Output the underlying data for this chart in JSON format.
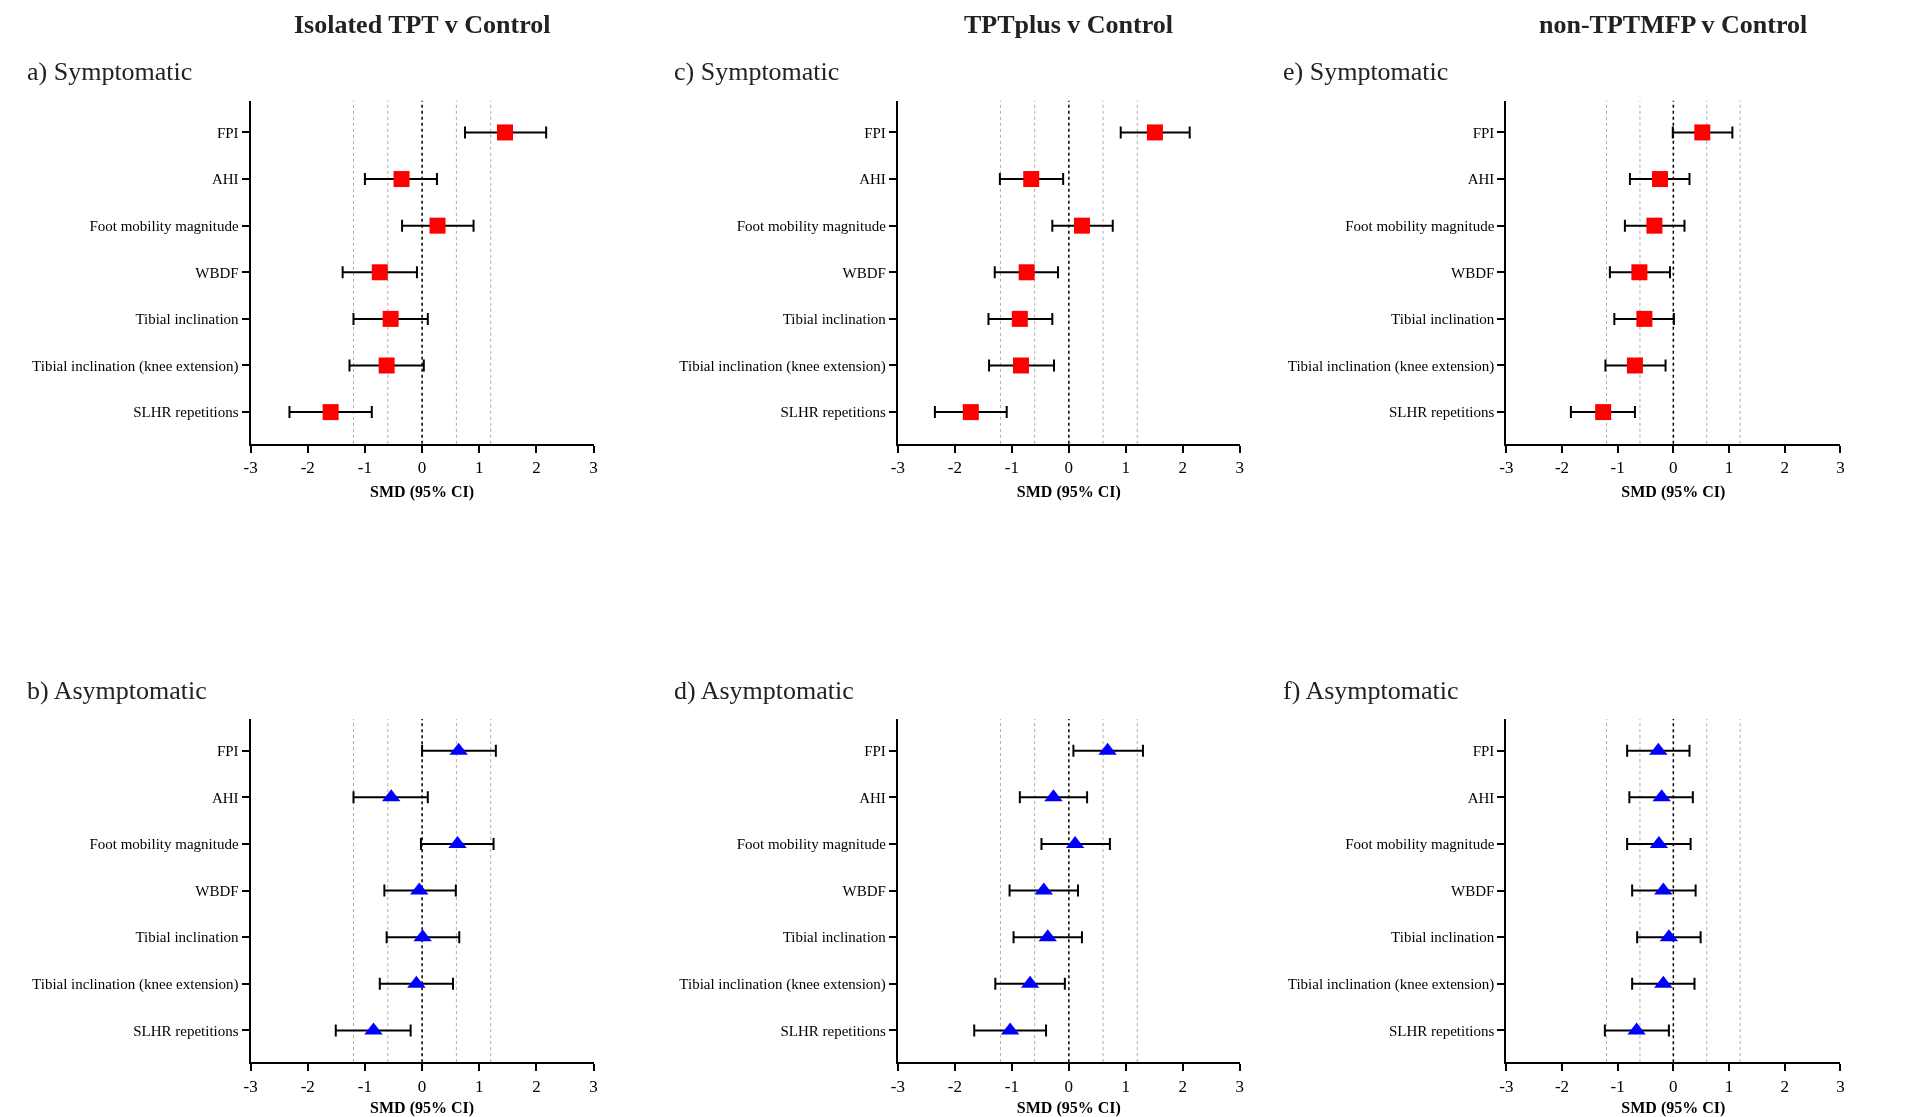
{
  "chart_data": [
    {
      "type": "scatter",
      "title": "a) Symptomatic",
      "annotations": [
        "Isolated TPT v Control"
      ],
      "xlabel": "SMD (95% CI)",
      "orientation": "horizontal",
      "marker": "square",
      "grid": false,
      "categories": [
        "FPI",
        "AHI",
        "Foot mobility magnitude",
        "WBDF",
        "Tibial inclination",
        "Tibial inclination (knee extension)",
        "SLHR repetitions"
      ],
      "series": [
        {
          "color": "#ff0000",
          "values": [
            1.45,
            -0.36,
            0.27,
            -0.74,
            -0.55,
            -0.62,
            -1.6
          ],
          "errors": [
            [
              0.75,
              2.17
            ],
            [
              -1.0,
              0.26
            ],
            [
              -0.35,
              0.9
            ],
            [
              -1.39,
              -0.09
            ],
            [
              -1.2,
              0.1
            ],
            [
              -1.27,
              0.03
            ],
            [
              -2.32,
              -0.88
            ]
          ]
        }
      ],
      "xlim": [
        -3,
        3
      ],
      "xticks": [
        -3,
        -2,
        -1,
        0,
        1,
        2,
        3
      ],
      "ref_lines": [
        {
          "axis": "x",
          "value": -1.2,
          "color": "#aaaaaa",
          "line_style": "dotted"
        },
        {
          "axis": "x",
          "value": -0.6,
          "color": "#aaaaaa",
          "line_style": "dotted"
        },
        {
          "axis": "x",
          "value": 0,
          "color": "#000000",
          "line_style": "dotted"
        },
        {
          "axis": "x",
          "value": 0.6,
          "color": "#aaaaaa",
          "line_style": "dotted"
        },
        {
          "axis": "x",
          "value": 1.2,
          "color": "#aaaaaa",
          "line_style": "dotted"
        }
      ]
    },
    {
      "type": "scatter",
      "title": "c) Symptomatic",
      "annotations": [
        "TPTplus v Control"
      ],
      "xlabel": "SMD (95% CI)",
      "orientation": "horizontal",
      "marker": "square",
      "grid": false,
      "categories": [
        "FPI",
        "AHI",
        "Foot mobility magnitude",
        "WBDF",
        "Tibial inclination",
        "Tibial inclination (knee extension)",
        "SLHR repetitions"
      ],
      "series": [
        {
          "color": "#ff0000",
          "values": [
            1.51,
            -0.66,
            0.23,
            -0.74,
            -0.86,
            -0.84,
            -1.72
          ],
          "errors": [
            [
              0.91,
              2.12
            ],
            [
              -1.21,
              -0.1
            ],
            [
              -0.29,
              0.77
            ],
            [
              -1.3,
              -0.19
            ],
            [
              -1.41,
              -0.29
            ],
            [
              -1.4,
              -0.26
            ],
            [
              -2.35,
              -1.09
            ]
          ]
        }
      ],
      "xlim": [
        -3,
        3
      ],
      "xticks": [
        -3,
        -2,
        -1,
        0,
        1,
        2,
        3
      ],
      "ref_lines": [
        {
          "axis": "x",
          "value": -1.2,
          "color": "#aaaaaa",
          "line_style": "dotted"
        },
        {
          "axis": "x",
          "value": -0.6,
          "color": "#aaaaaa",
          "line_style": "dotted"
        },
        {
          "axis": "x",
          "value": 0,
          "color": "#000000",
          "line_style": "dotted"
        },
        {
          "axis": "x",
          "value": 0.6,
          "color": "#aaaaaa",
          "line_style": "dotted"
        },
        {
          "axis": "x",
          "value": 1.2,
          "color": "#aaaaaa",
          "line_style": "dotted"
        }
      ]
    },
    {
      "type": "scatter",
      "title": "e) Symptomatic",
      "annotations": [
        "non-TPTMFP v Control"
      ],
      "xlabel": "SMD (95% CI)",
      "orientation": "horizontal",
      "marker": "square",
      "grid": false,
      "categories": [
        "FPI",
        "AHI",
        "Foot mobility magnitude",
        "WBDF",
        "Tibial inclination",
        "Tibial inclination (knee extension)",
        "SLHR repetitions"
      ],
      "series": [
        {
          "color": "#ff0000",
          "values": [
            0.52,
            -0.24,
            -0.34,
            -0.61,
            -0.52,
            -0.69,
            -1.26
          ],
          "errors": [
            [
              -0.01,
              1.06
            ],
            [
              -0.78,
              0.29
            ],
            [
              -0.87,
              0.2
            ],
            [
              -1.14,
              -0.06
            ],
            [
              -1.06,
              0.01
            ],
            [
              -1.22,
              -0.14
            ],
            [
              -1.84,
              -0.69
            ]
          ]
        }
      ],
      "xlim": [
        -3,
        3
      ],
      "xticks": [
        -3,
        -2,
        -1,
        0,
        1,
        2,
        3
      ],
      "ref_lines": [
        {
          "axis": "x",
          "value": -1.2,
          "color": "#aaaaaa",
          "line_style": "dotted"
        },
        {
          "axis": "x",
          "value": -0.6,
          "color": "#aaaaaa",
          "line_style": "dotted"
        },
        {
          "axis": "x",
          "value": 0,
          "color": "#000000",
          "line_style": "dotted"
        },
        {
          "axis": "x",
          "value": 0.6,
          "color": "#aaaaaa",
          "line_style": "dotted"
        },
        {
          "axis": "x",
          "value": 1.2,
          "color": "#aaaaaa",
          "line_style": "dotted"
        }
      ]
    },
    {
      "type": "scatter",
      "title": "b) Asymptomatic",
      "xlabel": "SMD (95% CI)",
      "orientation": "horizontal",
      "marker": "triangle",
      "grid": false,
      "categories": [
        "FPI",
        "AHI",
        "Foot mobility magnitude",
        "WBDF",
        "Tibial inclination",
        "Tibial inclination (knee extension)",
        "SLHR repetitions"
      ],
      "series": [
        {
          "color": "#0000ff",
          "values": [
            0.64,
            -0.54,
            0.62,
            -0.05,
            0.01,
            -0.1,
            -0.85
          ],
          "errors": [
            [
              0.0,
              1.29
            ],
            [
              -1.2,
              0.1
            ],
            [
              -0.02,
              1.25
            ],
            [
              -0.66,
              0.59
            ],
            [
              -0.62,
              0.65
            ],
            [
              -0.74,
              0.54
            ],
            [
              -1.51,
              -0.2
            ]
          ]
        }
      ],
      "xlim": [
        -3,
        3
      ],
      "xticks": [
        -3,
        -2,
        -1,
        0,
        1,
        2,
        3
      ],
      "ref_lines": [
        {
          "axis": "x",
          "value": -1.2,
          "color": "#aaaaaa",
          "line_style": "dotted"
        },
        {
          "axis": "x",
          "value": -0.6,
          "color": "#aaaaaa",
          "line_style": "dotted"
        },
        {
          "axis": "x",
          "value": 0,
          "color": "#000000",
          "line_style": "dotted"
        },
        {
          "axis": "x",
          "value": 0.6,
          "color": "#aaaaaa",
          "line_style": "dotted"
        },
        {
          "axis": "x",
          "value": 1.2,
          "color": "#aaaaaa",
          "line_style": "dotted"
        }
      ]
    },
    {
      "type": "scatter",
      "title": "d) Asymptomatic",
      "xlabel": "SMD (95% CI)",
      "orientation": "horizontal",
      "marker": "triangle",
      "grid": false,
      "categories": [
        "FPI",
        "AHI",
        "Foot mobility magnitude",
        "WBDF",
        "Tibial inclination",
        "Tibial inclination (knee extension)",
        "SLHR repetitions"
      ],
      "series": [
        {
          "color": "#0000ff",
          "values": [
            0.68,
            -0.27,
            0.11,
            -0.44,
            -0.37,
            -0.68,
            -1.03
          ],
          "errors": [
            [
              0.08,
              1.3
            ],
            [
              -0.86,
              0.32
            ],
            [
              -0.48,
              0.72
            ],
            [
              -1.04,
              0.16
            ],
            [
              -0.97,
              0.23
            ],
            [
              -1.29,
              -0.07
            ],
            [
              -1.66,
              -0.4
            ]
          ]
        }
      ],
      "xlim": [
        -3,
        3
      ],
      "xticks": [
        -3,
        -2,
        -1,
        0,
        1,
        2,
        3
      ],
      "ref_lines": [
        {
          "axis": "x",
          "value": -1.2,
          "color": "#aaaaaa",
          "line_style": "dotted"
        },
        {
          "axis": "x",
          "value": -0.6,
          "color": "#aaaaaa",
          "line_style": "dotted"
        },
        {
          "axis": "x",
          "value": 0,
          "color": "#000000",
          "line_style": "dotted"
        },
        {
          "axis": "x",
          "value": 0.6,
          "color": "#aaaaaa",
          "line_style": "dotted"
        },
        {
          "axis": "x",
          "value": 1.2,
          "color": "#aaaaaa",
          "line_style": "dotted"
        }
      ]
    },
    {
      "type": "scatter",
      "title": "f) Asymptomatic",
      "xlabel": "SMD (95% CI)",
      "orientation": "horizontal",
      "marker": "triangle",
      "grid": false,
      "categories": [
        "FPI",
        "AHI",
        "Foot mobility magnitude",
        "WBDF",
        "Tibial inclination",
        "Tibial inclination (knee extension)",
        "SLHR repetitions"
      ],
      "series": [
        {
          "color": "#0000ff",
          "values": [
            -0.27,
            -0.21,
            -0.26,
            -0.18,
            -0.08,
            -0.18,
            -0.66
          ],
          "errors": [
            [
              -0.83,
              0.29
            ],
            [
              -0.79,
              0.35
            ],
            [
              -0.83,
              0.31
            ],
            [
              -0.74,
              0.4
            ],
            [
              -0.65,
              0.49
            ],
            [
              -0.74,
              0.38
            ],
            [
              -1.23,
              -0.08
            ]
          ]
        }
      ],
      "xlim": [
        -3,
        3
      ],
      "xticks": [
        -3,
        -2,
        -1,
        0,
        1,
        2,
        3
      ],
      "ref_lines": [
        {
          "axis": "x",
          "value": -1.2,
          "color": "#aaaaaa",
          "line_style": "dotted"
        },
        {
          "axis": "x",
          "value": -0.6,
          "color": "#aaaaaa",
          "line_style": "dotted"
        },
        {
          "axis": "x",
          "value": 0,
          "color": "#000000",
          "line_style": "dotted"
        },
        {
          "axis": "x",
          "value": 0.6,
          "color": "#aaaaaa",
          "line_style": "dotted"
        },
        {
          "axis": "x",
          "value": 1.2,
          "color": "#aaaaaa",
          "line_style": "dotted"
        }
      ]
    }
  ]
}
